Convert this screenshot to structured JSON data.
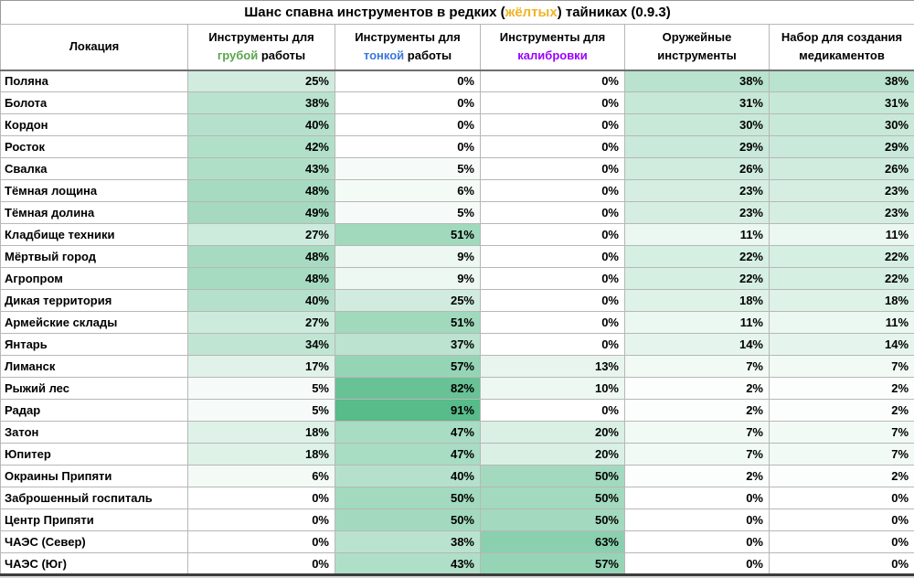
{
  "title": {
    "pre": "Шанс спавна инструментов в редких (",
    "accent": "жёлтых",
    "post": ") тайниках (0.9.3)"
  },
  "colors": {
    "title_accent": "#f0b429",
    "rough_accent": "#58a64b",
    "fine_accent": "#3c78d8",
    "calib_accent": "#9900ff",
    "text": "#000000",
    "grid": "#b7b7b7"
  },
  "header": {
    "location": "Локация",
    "col_rough": {
      "line1": "Инструменты для",
      "accent": "грубой",
      "rest": " работы"
    },
    "col_fine": {
      "line1": "Инструменты для",
      "accent": "тонкой",
      "rest": " работы"
    },
    "col_calib": {
      "line1": "Инструменты для",
      "accent": "калибровки"
    },
    "col_weapon": {
      "line1": "Оружейные",
      "line2": "инструменты"
    },
    "col_med": {
      "line1": "Набор для создания",
      "line2": "медикаментов"
    }
  },
  "chart_data": {
    "type": "heatmap",
    "title": "Шанс спавна инструментов в редких (жёлтых) тайниках (0.9.3)",
    "unit": "%",
    "row_axis_label": "Локация",
    "columns": [
      "Инструменты для грубой работы",
      "Инструменты для тонкой работы",
      "Инструменты для калибровки",
      "Оружейные инструменты",
      "Набор для создания медикаментов"
    ],
    "rows": [
      {
        "location": "Поляна",
        "values": [
          25,
          0,
          0,
          38,
          38
        ]
      },
      {
        "location": "Болота",
        "values": [
          38,
          0,
          0,
          31,
          31
        ]
      },
      {
        "location": "Кордон",
        "values": [
          40,
          0,
          0,
          30,
          30
        ]
      },
      {
        "location": "Росток",
        "values": [
          42,
          0,
          0,
          29,
          29
        ]
      },
      {
        "location": "Свалка",
        "values": [
          43,
          5,
          0,
          26,
          26
        ]
      },
      {
        "location": "Тёмная лощина",
        "values": [
          48,
          6,
          0,
          23,
          23
        ]
      },
      {
        "location": "Тёмная долина",
        "values": [
          49,
          5,
          0,
          23,
          23
        ]
      },
      {
        "location": "Кладбище техники",
        "values": [
          27,
          51,
          0,
          11,
          11
        ]
      },
      {
        "location": "Мёртвый город",
        "values": [
          48,
          9,
          0,
          22,
          22
        ]
      },
      {
        "location": "Агропром",
        "values": [
          48,
          9,
          0,
          22,
          22
        ]
      },
      {
        "location": "Дикая территория",
        "values": [
          40,
          25,
          0,
          18,
          18
        ]
      },
      {
        "location": "Армейские склады",
        "values": [
          27,
          51,
          0,
          11,
          11
        ]
      },
      {
        "location": "Янтарь",
        "values": [
          34,
          37,
          0,
          14,
          14
        ]
      },
      {
        "location": "Лиманск",
        "values": [
          17,
          57,
          13,
          7,
          7
        ]
      },
      {
        "location": "Рыжий лес",
        "values": [
          5,
          82,
          10,
          2,
          2
        ]
      },
      {
        "location": "Радар",
        "values": [
          5,
          91,
          0,
          2,
          2
        ]
      },
      {
        "location": "Затон",
        "values": [
          18,
          47,
          20,
          7,
          7
        ]
      },
      {
        "location": "Юпитер",
        "values": [
          18,
          47,
          20,
          7,
          7
        ]
      },
      {
        "location": "Окраины Припяти",
        "values": [
          6,
          40,
          50,
          2,
          2
        ]
      },
      {
        "location": "Заброшенный госпиталь",
        "values": [
          0,
          50,
          50,
          0,
          0
        ]
      },
      {
        "location": "Центр Припяти",
        "values": [
          0,
          50,
          50,
          0,
          0
        ]
      },
      {
        "location": "ЧАЭС (Север)",
        "values": [
          0,
          38,
          63,
          0,
          0
        ]
      },
      {
        "location": "ЧАЭС (Юг)",
        "values": [
          0,
          43,
          57,
          0,
          0
        ]
      }
    ],
    "color_scale": {
      "min_value": 0,
      "max_value": 91,
      "min_color": "#ffffff",
      "max_color": "#57bb8a"
    },
    "legend_position": "none",
    "grid": true
  }
}
